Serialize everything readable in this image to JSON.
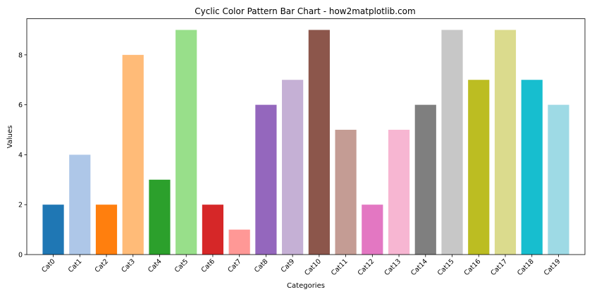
{
  "chart_data": {
    "type": "bar",
    "title": "Cyclic Color Pattern Bar Chart - how2matplotlib.com",
    "xlabel": "Categories",
    "ylabel": "Values",
    "categories": [
      "Cat0",
      "Cat1",
      "Cat2",
      "Cat3",
      "Cat4",
      "Cat5",
      "Cat6",
      "Cat7",
      "Cat8",
      "Cat9",
      "Cat10",
      "Cat11",
      "Cat12",
      "Cat13",
      "Cat14",
      "Cat15",
      "Cat16",
      "Cat17",
      "Cat18",
      "Cat19"
    ],
    "values": [
      2,
      4,
      2,
      8,
      3,
      9,
      2,
      1,
      6,
      7,
      9,
      5,
      2,
      5,
      6,
      9,
      7,
      9,
      7,
      6
    ],
    "colors": [
      "#1f77b4",
      "#aec7e8",
      "#ff7f0e",
      "#ffbb78",
      "#2ca02c",
      "#98df8a",
      "#d62728",
      "#ff9896",
      "#9467bd",
      "#c5b0d5",
      "#8c564b",
      "#c49c94",
      "#e377c2",
      "#f7b6d2",
      "#7f7f7f",
      "#c7c7c7",
      "#bcbd22",
      "#dbdb8d",
      "#17becf",
      "#9edae5"
    ],
    "ylim": [
      0,
      9.45
    ],
    "yticks": [
      0,
      2,
      4,
      6,
      8
    ],
    "grid": false,
    "legend": "none"
  }
}
